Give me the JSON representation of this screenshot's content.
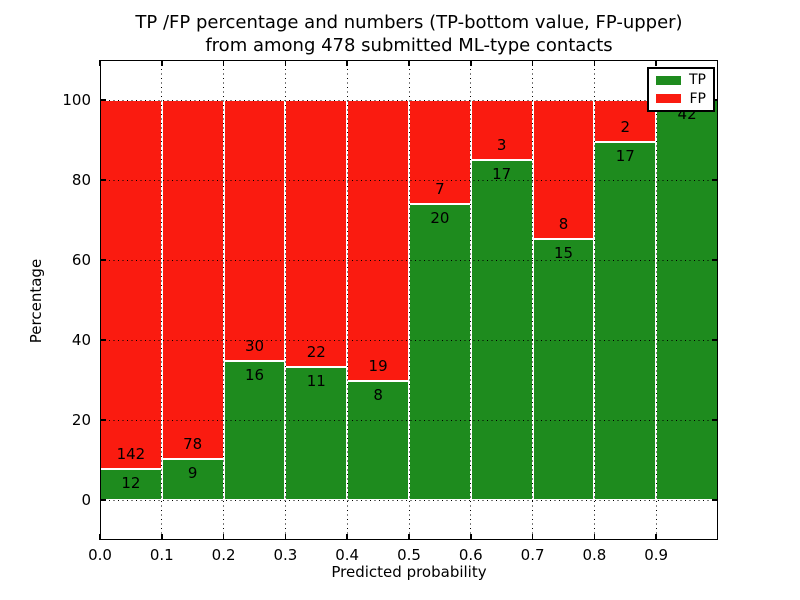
{
  "chart_data": {
    "type": "bar",
    "stacked": true,
    "normalized_to_percent": true,
    "title_lines": [
      "TP /FP percentage and numbers (TP-bottom value, FP-upper)",
      "from among 478 submitted ML-type contacts"
    ],
    "xlabel": "Predicted probability",
    "ylabel": "Percentage",
    "xlim": [
      0.0,
      1.0
    ],
    "ylim": [
      -10,
      110
    ],
    "xtick_labels": [
      "0.0",
      "0.1",
      "0.2",
      "0.3",
      "0.4",
      "0.5",
      "0.6",
      "0.7",
      "0.8",
      "0.9"
    ],
    "ytick_values": [
      0,
      20,
      40,
      60,
      80,
      100
    ],
    "grid": "dotted",
    "total_submitted": 478,
    "bins": [
      "0.0-0.1",
      "0.1-0.2",
      "0.2-0.3",
      "0.3-0.4",
      "0.4-0.5",
      "0.5-0.6",
      "0.6-0.7",
      "0.7-0.8",
      "0.8-0.9",
      "0.9-1.0"
    ],
    "series": [
      {
        "name": "TP",
        "color": "#1e8b1e",
        "counts": [
          12,
          9,
          16,
          11,
          8,
          20,
          17,
          15,
          17,
          42
        ],
        "percent_of_bin": [
          7.8,
          10.3,
          34.8,
          33.3,
          29.6,
          74.1,
          85.0,
          65.2,
          89.5,
          100.0
        ]
      },
      {
        "name": "FP",
        "color": "#fa1b10",
        "counts": [
          142,
          78,
          30,
          22,
          19,
          7,
          3,
          8,
          2,
          0
        ],
        "percent_of_bin": [
          92.2,
          89.7,
          65.2,
          66.7,
          70.4,
          25.9,
          15.0,
          34.8,
          10.5,
          0.0
        ]
      }
    ],
    "legend": {
      "position": "upper right"
    }
  }
}
